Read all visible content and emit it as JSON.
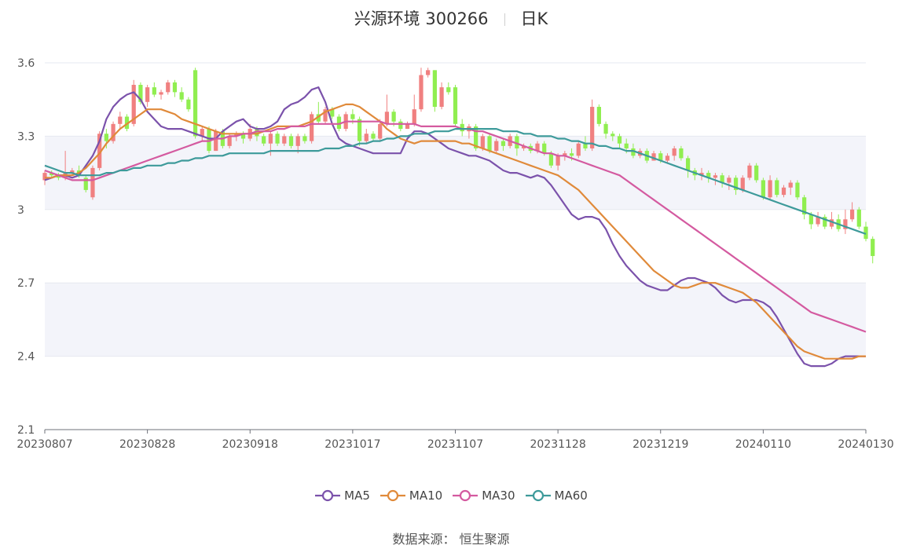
{
  "header": {
    "title": "兴源环境 300266",
    "period": "日K"
  },
  "source": {
    "label": "数据来源：",
    "value": "恒生聚源"
  },
  "chart_data": {
    "type": "candlestick",
    "title": "兴源环境 300266",
    "ylim": [
      2.1,
      3.6
    ],
    "yticks": [
      "3.6",
      "3.3",
      "3",
      "2.7",
      "2.4",
      "2.1"
    ],
    "ytick_values": [
      3.6,
      3.3,
      3.0,
      2.7,
      2.4,
      2.1
    ],
    "xticks": [
      "20230807",
      "20230828",
      "20230918",
      "20231017",
      "20231107",
      "20231128",
      "20231219",
      "20240110",
      "20240130"
    ],
    "xtick_index": [
      0,
      15,
      30,
      45,
      60,
      75,
      90,
      105,
      120
    ],
    "n_days": 121,
    "up_color": "#f08080",
    "down_color": "#90ee50",
    "candles": [
      [
        3.12,
        3.15,
        3.1,
        3.16
      ],
      [
        3.15,
        3.14,
        3.13,
        3.16
      ],
      [
        3.14,
        3.13,
        3.12,
        3.15
      ],
      [
        3.13,
        3.15,
        3.12,
        3.24
      ],
      [
        3.15,
        3.16,
        3.14,
        3.17
      ],
      [
        3.16,
        3.14,
        3.13,
        3.18
      ],
      [
        3.13,
        3.08,
        3.07,
        3.14
      ],
      [
        3.05,
        3.17,
        3.04,
        3.18
      ],
      [
        3.17,
        3.31,
        3.16,
        3.32
      ],
      [
        3.31,
        3.28,
        3.25,
        3.33
      ],
      [
        3.28,
        3.35,
        3.27,
        3.36
      ],
      [
        3.35,
        3.38,
        3.33,
        3.4
      ],
      [
        3.38,
        3.33,
        3.32,
        3.39
      ],
      [
        3.35,
        3.51,
        3.34,
        3.53
      ],
      [
        3.51,
        3.44,
        3.43,
        3.52
      ],
      [
        3.44,
        3.5,
        3.42,
        3.51
      ],
      [
        3.5,
        3.47,
        3.46,
        3.52
      ],
      [
        3.47,
        3.48,
        3.45,
        3.49
      ],
      [
        3.48,
        3.52,
        3.47,
        3.53
      ],
      [
        3.52,
        3.48,
        3.46,
        3.53
      ],
      [
        3.48,
        3.45,
        3.44,
        3.5
      ],
      [
        3.45,
        3.41,
        3.4,
        3.46
      ],
      [
        3.57,
        3.3,
        3.29,
        3.58
      ],
      [
        3.3,
        3.33,
        3.28,
        3.34
      ],
      [
        3.33,
        3.24,
        3.23,
        3.34
      ],
      [
        3.24,
        3.32,
        3.24,
        3.33
      ],
      [
        3.32,
        3.26,
        3.25,
        3.33
      ],
      [
        3.26,
        3.3,
        3.25,
        3.31
      ],
      [
        3.3,
        3.31,
        3.28,
        3.32
      ],
      [
        3.31,
        3.29,
        3.27,
        3.32
      ],
      [
        3.29,
        3.33,
        3.28,
        3.35
      ],
      [
        3.33,
        3.3,
        3.28,
        3.34
      ],
      [
        3.3,
        3.27,
        3.26,
        3.31
      ],
      [
        3.27,
        3.31,
        3.22,
        3.32
      ],
      [
        3.31,
        3.27,
        3.26,
        3.32
      ],
      [
        3.27,
        3.3,
        3.26,
        3.31
      ],
      [
        3.3,
        3.26,
        3.25,
        3.31
      ],
      [
        3.26,
        3.3,
        3.23,
        3.31
      ],
      [
        3.3,
        3.28,
        3.27,
        3.31
      ],
      [
        3.28,
        3.39,
        3.27,
        3.4
      ],
      [
        3.39,
        3.36,
        3.35,
        3.44
      ],
      [
        3.36,
        3.41,
        3.35,
        3.42
      ],
      [
        3.41,
        3.38,
        3.37,
        3.42
      ],
      [
        3.38,
        3.33,
        3.32,
        3.39
      ],
      [
        3.33,
        3.39,
        3.32,
        3.4
      ],
      [
        3.39,
        3.37,
        3.35,
        3.41
      ],
      [
        3.37,
        3.28,
        3.26,
        3.38
      ],
      [
        3.28,
        3.31,
        3.27,
        3.33
      ],
      [
        3.31,
        3.29,
        3.28,
        3.32
      ],
      [
        3.29,
        3.35,
        3.28,
        3.37
      ],
      [
        3.35,
        3.4,
        3.34,
        3.47
      ],
      [
        3.4,
        3.36,
        3.34,
        3.41
      ],
      [
        3.36,
        3.33,
        3.32,
        3.37
      ],
      [
        3.33,
        3.35,
        3.33,
        3.36
      ],
      [
        3.35,
        3.41,
        3.34,
        3.47
      ],
      [
        3.41,
        3.55,
        3.4,
        3.58
      ],
      [
        3.55,
        3.57,
        3.54,
        3.58
      ],
      [
        3.57,
        3.42,
        3.4,
        3.57
      ],
      [
        3.42,
        3.5,
        3.41,
        3.52
      ],
      [
        3.5,
        3.48,
        3.47,
        3.52
      ],
      [
        3.5,
        3.35,
        3.34,
        3.51
      ],
      [
        3.35,
        3.32,
        3.3,
        3.37
      ],
      [
        3.32,
        3.34,
        3.29,
        3.35
      ],
      [
        3.34,
        3.25,
        3.24,
        3.35
      ],
      [
        3.25,
        3.3,
        3.24,
        3.31
      ],
      [
        3.3,
        3.24,
        3.23,
        3.31
      ],
      [
        3.24,
        3.28,
        3.23,
        3.29
      ],
      [
        3.28,
        3.26,
        3.24,
        3.29
      ],
      [
        3.26,
        3.3,
        3.25,
        3.31
      ],
      [
        3.3,
        3.25,
        3.22,
        3.31
      ],
      [
        3.25,
        3.26,
        3.24,
        3.27
      ],
      [
        3.26,
        3.24,
        3.23,
        3.27
      ],
      [
        3.24,
        3.27,
        3.23,
        3.28
      ],
      [
        3.27,
        3.23,
        3.22,
        3.28
      ],
      [
        3.23,
        3.18,
        3.17,
        3.24
      ],
      [
        3.18,
        3.22,
        3.16,
        3.23
      ],
      [
        3.22,
        3.23,
        3.2,
        3.24
      ],
      [
        3.23,
        3.22,
        3.2,
        3.25
      ],
      [
        3.22,
        3.27,
        3.21,
        3.28
      ],
      [
        3.27,
        3.25,
        3.24,
        3.3
      ],
      [
        3.25,
        3.42,
        3.24,
        3.45
      ],
      [
        3.42,
        3.35,
        3.34,
        3.43
      ],
      [
        3.35,
        3.31,
        3.29,
        3.36
      ],
      [
        3.31,
        3.3,
        3.28,
        3.32
      ],
      [
        3.3,
        3.27,
        3.25,
        3.31
      ],
      [
        3.27,
        3.25,
        3.23,
        3.29
      ],
      [
        3.25,
        3.22,
        3.21,
        3.27
      ],
      [
        3.22,
        3.24,
        3.21,
        3.25
      ],
      [
        3.24,
        3.2,
        3.19,
        3.25
      ],
      [
        3.2,
        3.23,
        3.2,
        3.24
      ],
      [
        3.23,
        3.2,
        3.19,
        3.24
      ],
      [
        3.2,
        3.22,
        3.19,
        3.23
      ],
      [
        3.22,
        3.25,
        3.2,
        3.26
      ],
      [
        3.25,
        3.21,
        3.2,
        3.26
      ],
      [
        3.21,
        3.16,
        3.13,
        3.22
      ],
      [
        3.16,
        3.14,
        3.12,
        3.17
      ],
      [
        3.14,
        3.15,
        3.12,
        3.17
      ],
      [
        3.15,
        3.13,
        3.11,
        3.16
      ],
      [
        3.13,
        3.14,
        3.1,
        3.15
      ],
      [
        3.14,
        3.11,
        3.09,
        3.15
      ],
      [
        3.11,
        3.13,
        3.08,
        3.14
      ],
      [
        3.13,
        3.08,
        3.06,
        3.14
      ],
      [
        3.08,
        3.13,
        3.07,
        3.14
      ],
      [
        3.13,
        3.18,
        3.12,
        3.19
      ],
      [
        3.18,
        3.12,
        3.11,
        3.19
      ],
      [
        3.12,
        3.05,
        3.04,
        3.13
      ],
      [
        3.05,
        3.12,
        3.04,
        3.14
      ],
      [
        3.12,
        3.06,
        3.05,
        3.13
      ],
      [
        3.06,
        3.09,
        3.05,
        3.1
      ],
      [
        3.09,
        3.11,
        3.06,
        3.12
      ],
      [
        3.11,
        3.05,
        3.04,
        3.12
      ],
      [
        3.05,
        2.98,
        2.96,
        3.06
      ],
      [
        2.98,
        2.94,
        2.92,
        2.99
      ],
      [
        2.94,
        2.97,
        2.93,
        2.99
      ],
      [
        2.97,
        2.93,
        2.92,
        2.98
      ],
      [
        2.93,
        2.96,
        2.92,
        2.99
      ],
      [
        2.96,
        2.92,
        2.91,
        2.98
      ],
      [
        2.92,
        2.96,
        2.9,
        3.0
      ],
      [
        2.96,
        3.0,
        2.95,
        3.03
      ],
      [
        3.0,
        2.93,
        2.92,
        3.01
      ],
      [
        2.93,
        2.88,
        2.87,
        2.95
      ],
      [
        2.88,
        2.81,
        2.78,
        2.89
      ]
    ],
    "series": [
      {
        "name": "MA5",
        "color": "#7b52ab",
        "values": [
          3.12,
          3.13,
          3.14,
          3.14,
          3.13,
          3.14,
          3.18,
          3.22,
          3.28,
          3.37,
          3.42,
          3.45,
          3.47,
          3.48,
          3.45,
          3.4,
          3.37,
          3.34,
          3.33,
          3.33,
          3.33,
          3.32,
          3.31,
          3.3,
          3.29,
          3.29,
          3.32,
          3.34,
          3.36,
          3.37,
          3.34,
          3.33,
          3.33,
          3.34,
          3.36,
          3.41,
          3.43,
          3.44,
          3.46,
          3.49,
          3.5,
          3.44,
          3.35,
          3.29,
          3.27,
          3.26,
          3.25,
          3.24,
          3.23,
          3.23,
          3.23,
          3.23,
          3.23,
          3.29,
          3.32,
          3.32,
          3.31,
          3.29,
          3.27,
          3.25,
          3.24,
          3.23,
          3.22,
          3.22,
          3.21,
          3.2,
          3.18,
          3.16,
          3.15,
          3.15,
          3.14,
          3.13,
          3.14,
          3.13,
          3.1,
          3.06,
          3.02,
          2.98,
          2.96,
          2.97,
          2.97,
          2.96,
          2.92,
          2.86,
          2.81,
          2.77,
          2.74,
          2.71,
          2.69,
          2.68,
          2.67,
          2.67,
          2.69,
          2.71,
          2.72,
          2.72,
          2.71,
          2.7,
          2.68,
          2.65,
          2.63,
          2.62,
          2.63,
          2.63,
          2.63,
          2.62,
          2.6,
          2.56,
          2.51,
          2.46,
          2.41,
          2.37,
          2.36,
          2.36,
          2.36,
          2.37,
          2.39,
          2.4,
          2.4,
          2.4,
          2.4
        ]
      },
      {
        "name": "MA10",
        "color": "#e08a3a",
        "values": [
          3.13,
          3.13,
          3.14,
          3.14,
          3.14,
          3.15,
          3.17,
          3.2,
          3.23,
          3.27,
          3.3,
          3.33,
          3.35,
          3.37,
          3.39,
          3.41,
          3.41,
          3.41,
          3.4,
          3.39,
          3.37,
          3.36,
          3.35,
          3.34,
          3.33,
          3.32,
          3.31,
          3.31,
          3.31,
          3.31,
          3.31,
          3.31,
          3.32,
          3.33,
          3.34,
          3.34,
          3.34,
          3.34,
          3.35,
          3.36,
          3.38,
          3.4,
          3.41,
          3.42,
          3.43,
          3.43,
          3.42,
          3.4,
          3.38,
          3.36,
          3.33,
          3.31,
          3.29,
          3.28,
          3.27,
          3.28,
          3.28,
          3.28,
          3.28,
          3.28,
          3.28,
          3.27,
          3.27,
          3.26,
          3.25,
          3.24,
          3.23,
          3.22,
          3.21,
          3.2,
          3.19,
          3.18,
          3.17,
          3.16,
          3.15,
          3.14,
          3.12,
          3.1,
          3.08,
          3.05,
          3.02,
          2.99,
          2.96,
          2.93,
          2.9,
          2.87,
          2.84,
          2.81,
          2.78,
          2.75,
          2.73,
          2.71,
          2.69,
          2.68,
          2.68,
          2.69,
          2.7,
          2.7,
          2.7,
          2.69,
          2.68,
          2.67,
          2.66,
          2.64,
          2.62,
          2.59,
          2.56,
          2.53,
          2.5,
          2.47,
          2.44,
          2.42,
          2.41,
          2.4,
          2.39,
          2.39,
          2.39,
          2.39,
          2.39,
          2.4,
          2.4
        ]
      },
      {
        "name": "MA30",
        "color": "#d45aa0",
        "values": [
          3.16,
          3.15,
          3.14,
          3.13,
          3.12,
          3.12,
          3.12,
          3.12,
          3.13,
          3.14,
          3.15,
          3.16,
          3.17,
          3.18,
          3.19,
          3.2,
          3.21,
          3.22,
          3.23,
          3.24,
          3.25,
          3.26,
          3.27,
          3.28,
          3.28,
          3.29,
          3.29,
          3.3,
          3.3,
          3.31,
          3.31,
          3.32,
          3.32,
          3.32,
          3.33,
          3.33,
          3.34,
          3.34,
          3.34,
          3.35,
          3.35,
          3.35,
          3.35,
          3.35,
          3.36,
          3.36,
          3.36,
          3.36,
          3.36,
          3.36,
          3.35,
          3.35,
          3.35,
          3.35,
          3.35,
          3.34,
          3.34,
          3.34,
          3.34,
          3.34,
          3.34,
          3.33,
          3.33,
          3.32,
          3.32,
          3.31,
          3.3,
          3.29,
          3.28,
          3.27,
          3.26,
          3.25,
          3.24,
          3.23,
          3.23,
          3.22,
          3.22,
          3.21,
          3.2,
          3.19,
          3.18,
          3.17,
          3.16,
          3.15,
          3.14,
          3.12,
          3.1,
          3.08,
          3.06,
          3.04,
          3.02,
          3.0,
          2.98,
          2.96,
          2.94,
          2.92,
          2.9,
          2.88,
          2.86,
          2.84,
          2.82,
          2.8,
          2.78,
          2.76,
          2.74,
          2.72,
          2.7,
          2.68,
          2.66,
          2.64,
          2.62,
          2.6,
          2.58,
          2.57,
          2.56,
          2.55,
          2.54,
          2.53,
          2.52,
          2.51,
          2.5
        ]
      },
      {
        "name": "MA60",
        "color": "#3d9a9a",
        "values": [
          3.18,
          3.17,
          3.16,
          3.15,
          3.15,
          3.14,
          3.14,
          3.14,
          3.14,
          3.15,
          3.15,
          3.16,
          3.16,
          3.17,
          3.17,
          3.18,
          3.18,
          3.18,
          3.19,
          3.19,
          3.2,
          3.2,
          3.21,
          3.21,
          3.22,
          3.22,
          3.22,
          3.23,
          3.23,
          3.23,
          3.23,
          3.23,
          3.23,
          3.24,
          3.24,
          3.24,
          3.24,
          3.24,
          3.24,
          3.24,
          3.24,
          3.25,
          3.25,
          3.25,
          3.26,
          3.26,
          3.27,
          3.27,
          3.28,
          3.28,
          3.29,
          3.29,
          3.3,
          3.3,
          3.31,
          3.31,
          3.31,
          3.32,
          3.32,
          3.32,
          3.33,
          3.33,
          3.33,
          3.33,
          3.33,
          3.33,
          3.33,
          3.32,
          3.32,
          3.32,
          3.31,
          3.31,
          3.3,
          3.3,
          3.3,
          3.29,
          3.29,
          3.28,
          3.28,
          3.27,
          3.27,
          3.26,
          3.26,
          3.25,
          3.25,
          3.24,
          3.24,
          3.23,
          3.22,
          3.21,
          3.2,
          3.19,
          3.18,
          3.17,
          3.16,
          3.15,
          3.14,
          3.13,
          3.12,
          3.11,
          3.1,
          3.09,
          3.08,
          3.07,
          3.06,
          3.05,
          3.04,
          3.03,
          3.02,
          3.01,
          3.0,
          2.99,
          2.98,
          2.97,
          2.96,
          2.95,
          2.94,
          2.93,
          2.92,
          2.91,
          2.9
        ]
      }
    ]
  }
}
